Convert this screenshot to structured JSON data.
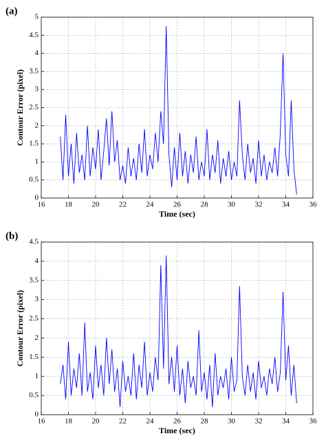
{
  "chart_data": [
    {
      "type": "line",
      "label": "(a)",
      "xlabel": "Time (sec)",
      "ylabel": "Contour Error (pixel)",
      "x": [
        17.4,
        17.6,
        17.8,
        18,
        18.2,
        18.4,
        18.6,
        18.8,
        19,
        19.2,
        19.4,
        19.6,
        19.8,
        20,
        20.2,
        20.4,
        20.6,
        20.8,
        21,
        21.2,
        21.4,
        21.6,
        21.8,
        22,
        22.2,
        22.4,
        22.6,
        22.8,
        23,
        23.2,
        23.4,
        23.6,
        23.8,
        24,
        24.2,
        24.4,
        24.6,
        24.8,
        25,
        25.2,
        25.4,
        25.6,
        25.8,
        26,
        26.2,
        26.4,
        26.6,
        26.8,
        27,
        27.2,
        27.4,
        27.6,
        27.8,
        28,
        28.2,
        28.4,
        28.6,
        28.8,
        29,
        29.2,
        29.4,
        29.6,
        29.8,
        30,
        30.2,
        30.4,
        30.6,
        30.8,
        31,
        31.2,
        31.4,
        31.6,
        31.8,
        32,
        32.2,
        32.4,
        32.6,
        32.8,
        33,
        33.2,
        33.4,
        33.6,
        33.8,
        34,
        34.2,
        34.4,
        34.6,
        34.8
      ],
      "values": [
        1.7,
        0.5,
        2.3,
        0.6,
        1.5,
        0.4,
        1.8,
        0.7,
        1.2,
        0.5,
        2.0,
        0.6,
        1.4,
        0.8,
        1.9,
        0.5,
        1.3,
        2.2,
        0.9,
        2.4,
        1.0,
        1.6,
        0.5,
        0.9,
        0.4,
        1.4,
        0.6,
        1.1,
        0.5,
        1.5,
        0.7,
        1.9,
        0.6,
        1.2,
        0.8,
        1.8,
        1.0,
        2.4,
        1.5,
        4.75,
        1.2,
        0.3,
        1.4,
        0.5,
        1.8,
        0.6,
        1.3,
        0.4,
        1.2,
        0.7,
        1.7,
        0.5,
        1.0,
        0.6,
        1.9,
        0.5,
        1.2,
        0.7,
        1.6,
        0.4,
        1.1,
        0.6,
        1.3,
        0.5,
        1.0,
        0.6,
        2.7,
        1.2,
        0.5,
        1.5,
        0.7,
        1.1,
        0.4,
        1.6,
        0.6,
        1.2,
        0.5,
        1.0,
        0.7,
        1.4,
        0.6,
        1.8,
        4.0,
        1.2,
        0.6,
        2.7,
        0.8,
        0.1
      ],
      "color": "#0000ff",
      "grid": true,
      "xlim": [
        16,
        36
      ],
      "xticks": [
        16,
        18,
        20,
        22,
        24,
        26,
        28,
        30,
        32,
        34,
        36
      ],
      "ylim": [
        0,
        5
      ],
      "yticks": [
        0,
        0.5,
        1,
        1.5,
        2,
        2.5,
        3,
        3.5,
        4,
        4.5,
        5
      ]
    },
    {
      "type": "line",
      "label": "(b)",
      "xlabel": "Time (sec)",
      "ylabel": "Contour Error (pixel)",
      "x": [
        17.4,
        17.6,
        17.8,
        18,
        18.2,
        18.4,
        18.6,
        18.8,
        19,
        19.2,
        19.4,
        19.6,
        19.8,
        20,
        20.2,
        20.4,
        20.6,
        20.8,
        21,
        21.2,
        21.4,
        21.6,
        21.8,
        22,
        22.2,
        22.4,
        22.6,
        22.8,
        23,
        23.2,
        23.4,
        23.6,
        23.8,
        24,
        24.2,
        24.4,
        24.6,
        24.8,
        25,
        25.2,
        25.4,
        25.6,
        25.8,
        26,
        26.2,
        26.4,
        26.6,
        26.8,
        27,
        27.2,
        27.4,
        27.6,
        27.8,
        28,
        28.2,
        28.4,
        28.6,
        28.8,
        29,
        29.2,
        29.4,
        29.6,
        29.8,
        30,
        30.2,
        30.4,
        30.6,
        30.8,
        31,
        31.2,
        31.4,
        31.6,
        31.8,
        32,
        32.2,
        32.4,
        32.6,
        32.8,
        33,
        33.2,
        33.4,
        33.6,
        33.8,
        34,
        34.2,
        34.4,
        34.6,
        34.8
      ],
      "values": [
        0.8,
        1.3,
        0.4,
        1.9,
        0.5,
        1.2,
        0.7,
        1.6,
        0.5,
        2.4,
        0.6,
        1.1,
        0.4,
        1.8,
        0.7,
        1.3,
        0.5,
        2.0,
        0.8,
        1.7,
        0.6,
        1.2,
        0.2,
        1.4,
        0.6,
        1.0,
        0.5,
        1.6,
        0.4,
        1.3,
        0.7,
        1.9,
        0.5,
        1.1,
        0.6,
        1.5,
        0.9,
        3.9,
        1.2,
        4.15,
        0.8,
        1.5,
        0.6,
        1.8,
        0.5,
        1.2,
        0.3,
        1.4,
        0.7,
        1.0,
        0.5,
        2.2,
        0.6,
        1.1,
        0.4,
        1.3,
        0.2,
        1.6,
        0.5,
        1.0,
        0.7,
        1.2,
        0.4,
        1.5,
        0.6,
        0.9,
        3.35,
        1.0,
        0.5,
        1.3,
        0.6,
        1.1,
        0.4,
        1.4,
        0.7,
        1.0,
        0.5,
        1.2,
        0.8,
        1.5,
        0.6,
        1.1,
        3.2,
        0.9,
        1.8,
        0.5,
        1.3,
        0.3
      ],
      "color": "#0000ff",
      "grid": true,
      "xlim": [
        16,
        36
      ],
      "xticks": [
        16,
        18,
        20,
        22,
        24,
        26,
        28,
        30,
        32,
        34,
        36
      ],
      "ylim": [
        0,
        4.5
      ],
      "yticks": [
        0,
        0.5,
        1,
        1.5,
        2,
        2.5,
        3,
        3.5,
        4,
        4.5
      ]
    }
  ]
}
